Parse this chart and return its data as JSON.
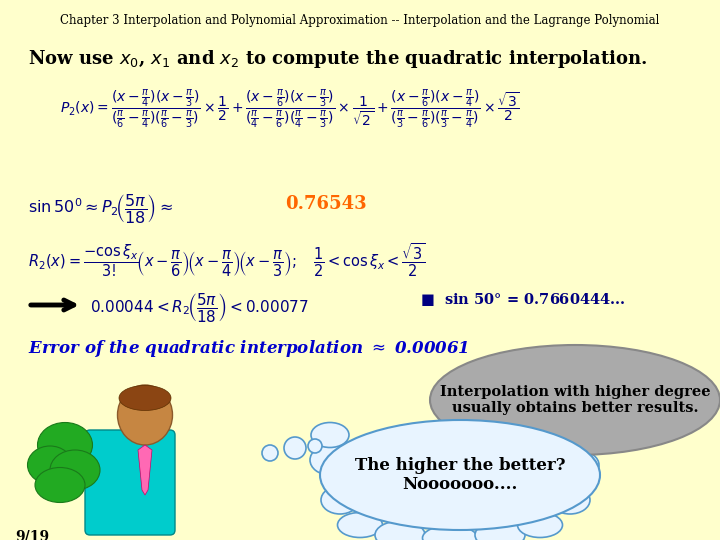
{
  "title": "Chapter 3 Interpolation and Polynomial Approximation -- Interpolation and the Lagrange Polynomial",
  "bg_color": "#FFFFCC",
  "title_color": "#000000",
  "title_fontsize": 8.5,
  "slide_number": "9/19",
  "heading_color": "#000000",
  "heading_fontsize": 13,
  "math_color": "#000080",
  "sin50_value": "0.76543",
  "sin50_color": "#FF6600",
  "sin50_exact_color": "#000080",
  "error_color": "#0000CC",
  "arrow_color": "#000000",
  "bubble1_text": "Interpolation with higher degree\nusually obtains better results.",
  "bubble1_facecolor": "#B0B0B0",
  "bubble1_edgecolor": "#808080",
  "bubble2_text": "The higher the better?\nNooooooo....",
  "bubble2_facecolor": "#E8F4FF",
  "bubble2_edgecolor": "#6699CC"
}
